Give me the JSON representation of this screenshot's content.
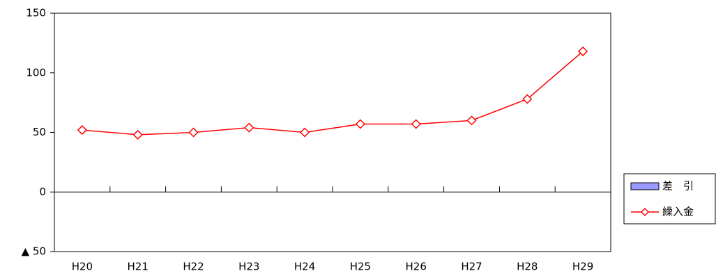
{
  "chart_data": {
    "type": "line",
    "categories": [
      "H20",
      "H21",
      "H22",
      "H23",
      "H24",
      "H25",
      "H26",
      "H27",
      "H28",
      "H29"
    ],
    "series": [
      {
        "name": "差　引",
        "type": "bar",
        "color": "#9999ff",
        "values": [
          null,
          null,
          null,
          null,
          null,
          null,
          null,
          null,
          null,
          null
        ]
      },
      {
        "name": "繰入金",
        "type": "line",
        "color": "#ff0000",
        "values": [
          52,
          48,
          50,
          54,
          50,
          57,
          57,
          60,
          78,
          118
        ]
      }
    ],
    "ylim": [
      -50,
      150
    ],
    "yticks": [
      {
        "value": -50,
        "label": "▲ 50"
      },
      0,
      50,
      100,
      150
    ],
    "grid": false,
    "legend": "right"
  }
}
